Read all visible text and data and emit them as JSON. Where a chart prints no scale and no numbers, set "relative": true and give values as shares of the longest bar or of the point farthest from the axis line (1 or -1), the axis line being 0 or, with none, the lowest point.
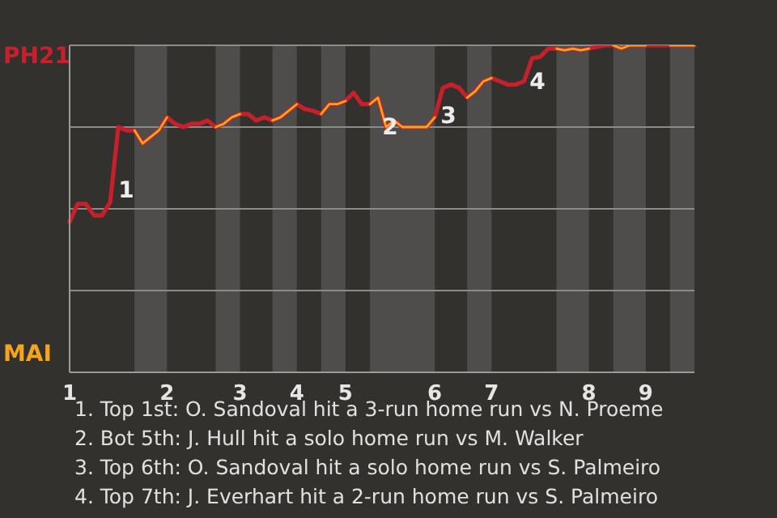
{
  "chart_data": {
    "type": "line",
    "relative": true,
    "grid": "y",
    "categories": [
      "1",
      null,
      null,
      null,
      null,
      null,
      null,
      null,
      null,
      null,
      null,
      null,
      "2",
      null,
      null,
      null,
      null,
      null,
      null,
      null,
      null,
      "3",
      null,
      null,
      null,
      null,
      null,
      null,
      "4",
      null,
      null,
      null,
      null,
      null,
      "5",
      null,
      null,
      null,
      null,
      null,
      null,
      null,
      null,
      null,
      null,
      "6",
      null,
      null,
      null,
      null,
      null,
      null,
      "7",
      null,
      null,
      null,
      null,
      null,
      null,
      null,
      null,
      null,
      null,
      null,
      "8",
      null,
      null,
      null,
      null,
      null,
      null,
      "9",
      null,
      null,
      null,
      null,
      null,
      null
    ],
    "series": [
      {
        "name": "PH21",
        "color": "#c8202a",
        "values": [
          0.46,
          0.515,
          0.515,
          0.48,
          0.48,
          0.52,
          0.75,
          0.74,
          0.74,
          0.7,
          0.72,
          0.74,
          0.78,
          0.76,
          0.75,
          0.76,
          0.76,
          0.77,
          0.75,
          0.76,
          0.78,
          0.79,
          0.79,
          0.77,
          0.78,
          0.77,
          0.78,
          0.8,
          0.82,
          0.805,
          0.8,
          0.79,
          0.82,
          0.82,
          0.83,
          0.855,
          0.82,
          0.82,
          0.84,
          0.75,
          0.77,
          0.75,
          0.75,
          0.75,
          0.75,
          0.78,
          0.87,
          0.88,
          0.87,
          0.84,
          0.86,
          0.89,
          0.9,
          0.89,
          0.88,
          0.88,
          0.89,
          0.96,
          0.965,
          0.99,
          0.99,
          0.985,
          0.99,
          0.985,
          0.99,
          0.995,
          1,
          1,
          0.99,
          1,
          1,
          1,
          1,
          1,
          1,
          1,
          1,
          1
        ]
      },
      {
        "name": "MAI",
        "color": "#f5a51d",
        "values": [
          null,
          null,
          null,
          null,
          null,
          null,
          null,
          null,
          0.74,
          0.7,
          0.72,
          0.74,
          0.78,
          null,
          null,
          null,
          null,
          null,
          0.75,
          0.76,
          0.78,
          0.79,
          null,
          null,
          null,
          0.77,
          0.78,
          0.8,
          0.82,
          null,
          null,
          0.79,
          0.82,
          0.82,
          0.83,
          null,
          null,
          0.82,
          0.84,
          0.75,
          0.77,
          0.75,
          0.75,
          0.75,
          0.75,
          0.78,
          null,
          null,
          null,
          0.84,
          0.86,
          0.89,
          0.9,
          null,
          null,
          null,
          null,
          null,
          null,
          null,
          0.99,
          0.985,
          0.99,
          0.985,
          0.99,
          null,
          null,
          1,
          0.99,
          1,
          1,
          1,
          null,
          null,
          1,
          1,
          1,
          1
        ]
      }
    ],
    "annotations": [
      "1",
      "2",
      "3",
      "4",
      "1. Top 1st: O. Sandoval hit a 3-run home run vs N. Proeme",
      "2. Bot 5th: J. Hull hit a solo home run vs M. Walker",
      "3. Top 6th: O. Sandoval hit a solo home run vs S. Palmeiro",
      "4. Top 7th: J. Everhart hit a 2-run home run vs S. Palmeiro"
    ]
  }
}
